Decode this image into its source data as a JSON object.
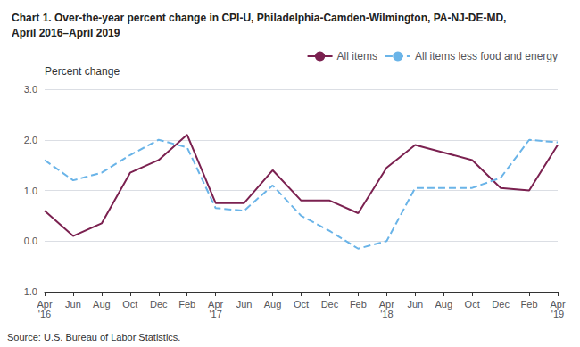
{
  "chart_data": {
    "type": "line",
    "title": "Chart 1. Over-the-year percent change in CPI-U, Philadelphia-Camden-Wilmington, PA-NJ-DE-MD,\nApril 2016–April 2019",
    "y_label": "Percent change",
    "source": "Source: U.S. Bureau of Labor Statistics.",
    "categories": [
      "Apr\n'16",
      "Jun",
      "Aug",
      "Oct",
      "Dec",
      "Feb",
      "Apr\n'17",
      "Jun",
      "Aug",
      "Oct",
      "Dec",
      "Feb",
      "Apr\n'18",
      "Jun",
      "Aug",
      "Oct",
      "Dec",
      "Feb",
      "Apr\n'19"
    ],
    "series": [
      {
        "name": "All items",
        "color": "#7b2150",
        "line_style": "solid",
        "values": [
          0.6,
          0.1,
          0.35,
          1.35,
          1.6,
          2.1,
          0.75,
          0.75,
          1.4,
          0.8,
          0.8,
          0.55,
          1.45,
          1.9,
          1.75,
          1.6,
          1.05,
          1.0,
          1.9
        ]
      },
      {
        "name": "All items less food and energy",
        "color": "#6ab4e8",
        "line_style": "dashed",
        "values": [
          1.6,
          1.2,
          1.35,
          1.7,
          2.0,
          1.85,
          0.65,
          0.6,
          1.1,
          0.5,
          0.2,
          -0.15,
          0.0,
          1.05,
          1.05,
          1.05,
          1.25,
          2.0,
          1.95
        ]
      }
    ],
    "ylim": [
      -1.0,
      3.0
    ],
    "yticks": [
      {
        "value": -1.0,
        "label": "-1.0"
      },
      {
        "value": 0.0,
        "label": "0.0"
      },
      {
        "value": 1.0,
        "label": "1.0"
      },
      {
        "value": 2.0,
        "label": "2.0"
      },
      {
        "value": 3.0,
        "label": "3.0"
      }
    ],
    "grid": true,
    "legend": "upper right"
  }
}
